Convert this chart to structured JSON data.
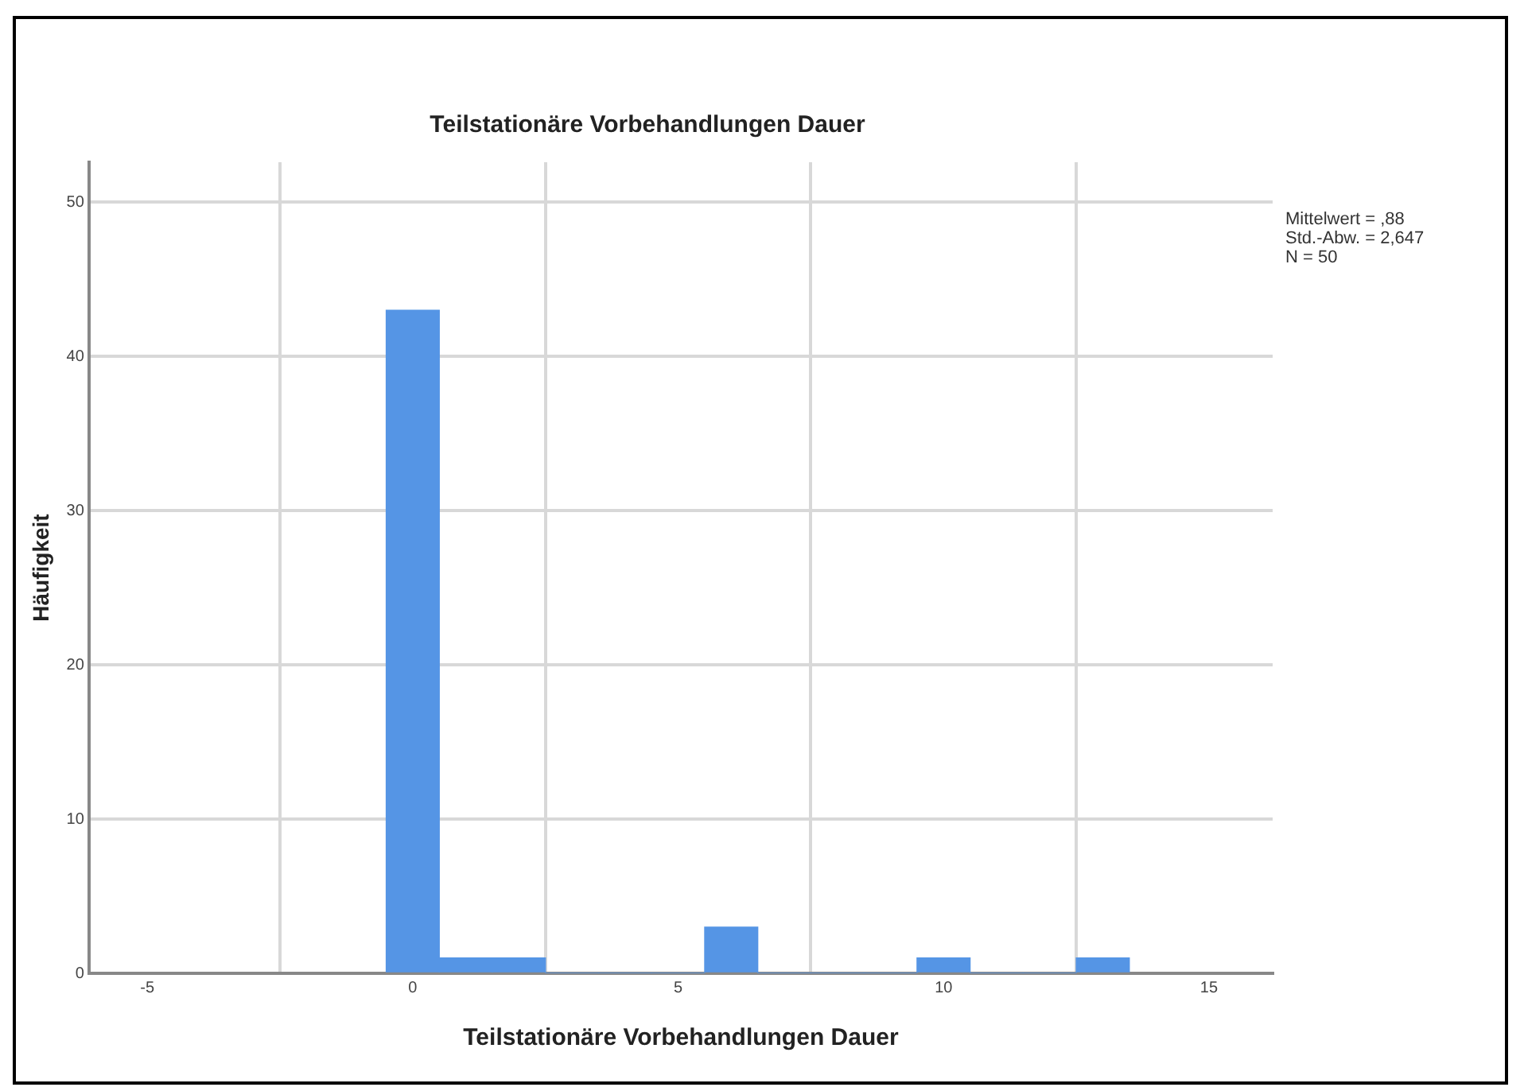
{
  "chart_data": {
    "type": "histogram",
    "title": "Teilstationäre Vorbehandlungen Dauer",
    "xlabel": "Teilstationäre Vorbehandlungen Dauer",
    "ylabel": "Häufigkeit",
    "bins": [
      -0.5,
      0.5,
      1.5,
      2.5,
      3.5,
      4.5,
      5.5,
      6.5,
      7.5,
      8.5,
      9.5,
      10.5,
      11.5,
      12.5,
      13.5
    ],
    "values": [
      43,
      1,
      1,
      0,
      0,
      0,
      3,
      0,
      0,
      0,
      1,
      0,
      0,
      1
    ],
    "color": "#5595e5",
    "xlim": [
      -6.1,
      16.2
    ],
    "xticks": [
      {
        "value": -5,
        "label": "-5"
      },
      0,
      5,
      10,
      15
    ],
    "ylim": [
      0,
      52.6
    ],
    "yticks": [
      0,
      10,
      20,
      30,
      40,
      50
    ],
    "grid": true,
    "annotations": [
      "Mittelwert = ,88",
      "Std.-Abw. = 2,647",
      "N = 50"
    ]
  }
}
